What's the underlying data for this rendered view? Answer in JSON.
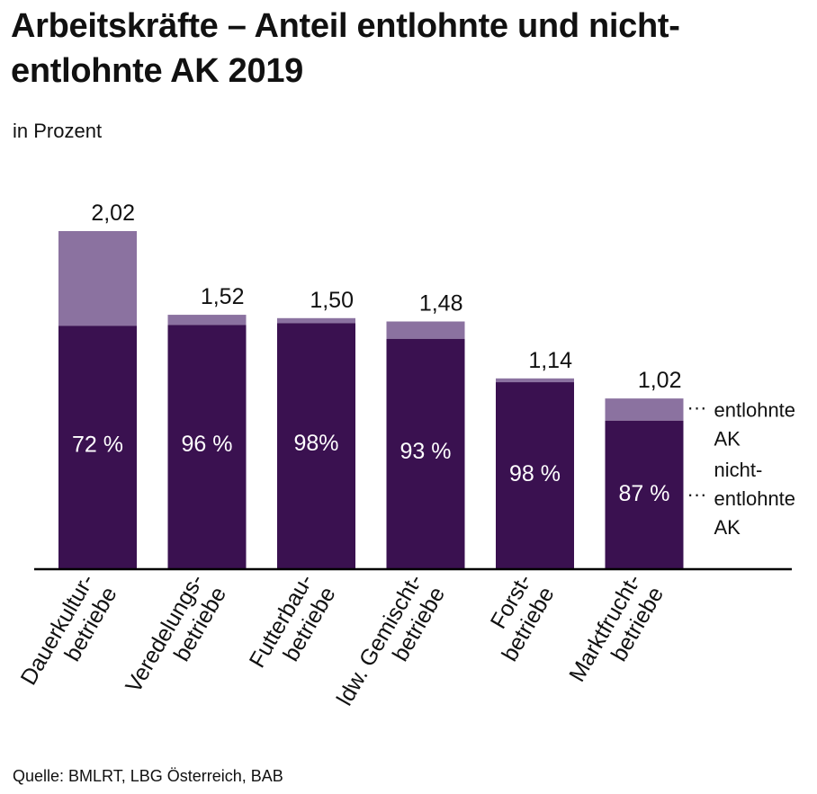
{
  "title": "Arbeitskräfte – Anteil entlohnte und nicht-entlohnte AK 2019",
  "subtitle": "in Prozent",
  "source": "Quelle: BMLRT, LBG Österreich, BAB",
  "colors": {
    "entlohnt": "#8b72a0",
    "nicht_entlohnt": "#3a1150",
    "axis": "#000000"
  },
  "chart_data": {
    "type": "bar",
    "stacked": true,
    "title": "Arbeitskräfte – Anteil entlohnte und nicht-entlohnte AK 2019",
    "subtitle": "in Prozent",
    "categories": [
      [
        "Dauerkultur-",
        "betriebe"
      ],
      [
        "Veredelungs-",
        "betriebe"
      ],
      [
        "Futterbau-",
        "betriebe"
      ],
      [
        "ldw. Gemischt-",
        "betriebe"
      ],
      [
        "Forst-",
        "betriebe"
      ],
      [
        "Marktfrucht-",
        "betriebe"
      ]
    ],
    "totals": [
      2.02,
      1.52,
      1.5,
      1.48,
      1.14,
      1.02
    ],
    "total_labels": [
      "2,02",
      "1,52",
      "1,50",
      "1,48",
      "1,14",
      "1,02"
    ],
    "nicht_entlohnt_share": [
      72,
      96,
      98,
      93,
      98,
      87
    ],
    "share_labels": [
      "72 %",
      "96 %",
      "98%",
      "93 %",
      "98 %",
      "87 %"
    ],
    "series": [
      {
        "name": [
          "nicht-",
          "entlohnte",
          "AK"
        ],
        "key": "nicht_entlohnt"
      },
      {
        "name": [
          "entlohnte",
          "AK"
        ],
        "key": "entlohnt"
      }
    ],
    "legend_position": "right",
    "ylim": [
      0,
      2.02
    ],
    "grid": false
  }
}
